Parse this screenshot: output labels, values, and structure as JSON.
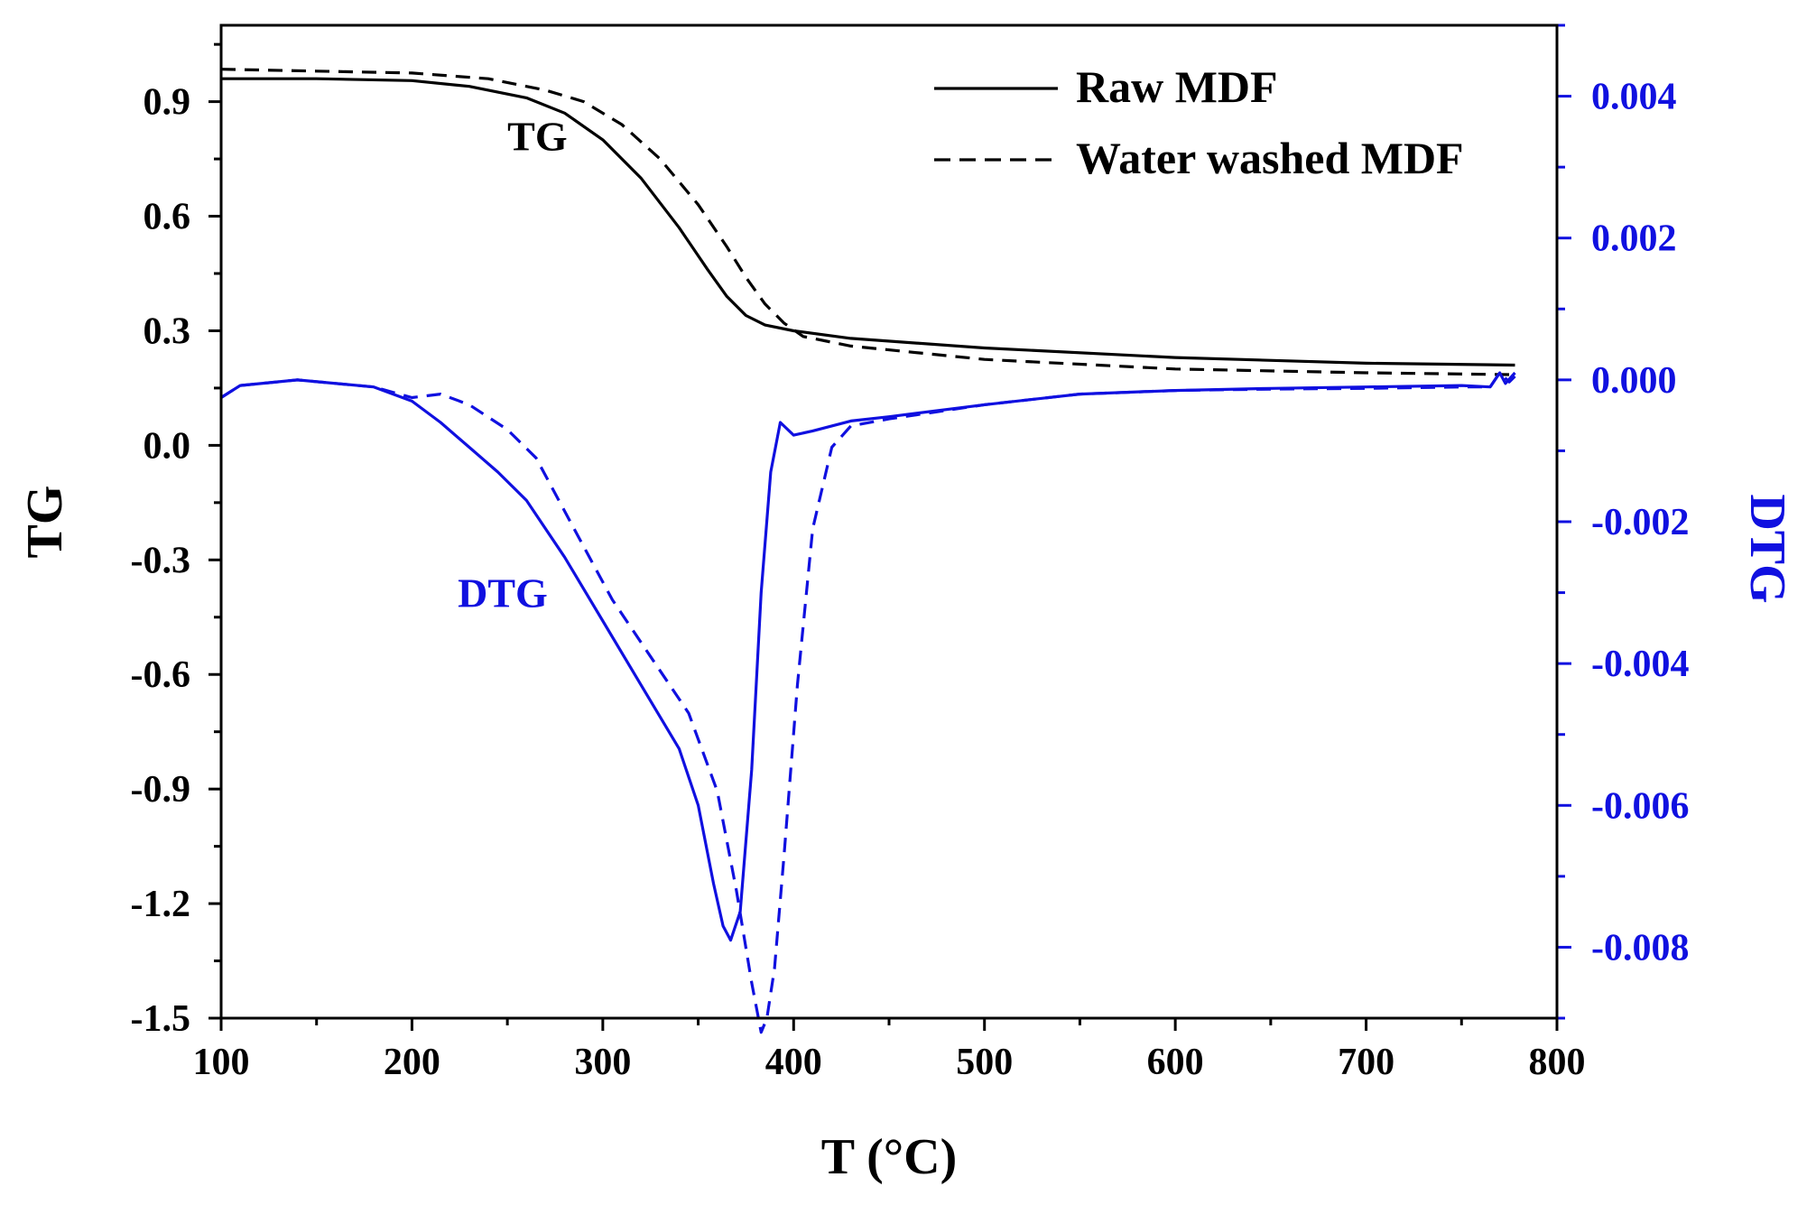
{
  "chart_data": {
    "type": "line",
    "xlabel": "T (°C)",
    "ylabel_left": "TG",
    "ylabel_right": "DTG",
    "xlim": [
      100,
      800
    ],
    "ylim_left": [
      -1.5,
      1.1
    ],
    "ylim_right": [
      -0.009,
      0.005
    ],
    "x_ticks": [
      100,
      200,
      300,
      400,
      500,
      600,
      700,
      800
    ],
    "y_left_ticks": [
      -1.5,
      -1.2,
      -0.9,
      -0.6,
      -0.3,
      0.0,
      0.3,
      0.6,
      0.9
    ],
    "y_left_tick_labels": [
      "-1.5",
      "-1.2",
      "-0.9",
      "-0.6",
      "-0.3",
      "0.0",
      "0.3",
      "0.6",
      "0.9"
    ],
    "y_right_ticks": [
      -0.008,
      -0.006,
      -0.004,
      -0.002,
      0.0,
      0.002,
      0.004
    ],
    "y_right_tick_labels": [
      "-0.008",
      "-0.006",
      "-0.004",
      "-0.002",
      "0.000",
      "0.002",
      "0.004"
    ],
    "legend": {
      "position": "top-right",
      "entries": [
        {
          "label": "Raw MDF",
          "style": "solid"
        },
        {
          "label": "Water washed MDF",
          "style": "dashed"
        }
      ]
    },
    "annotations": [
      {
        "text": "TG",
        "x": 250,
        "y": 0.81,
        "axis": "left",
        "color": "#000000"
      },
      {
        "text": "DTG",
        "x": 224,
        "y": -0.003,
        "axis": "right",
        "color": "#1010e0"
      }
    ],
    "colors": {
      "tg": "#000000",
      "dtg": "#1010e0",
      "right_axis": "#1010e0"
    },
    "series": [
      {
        "name": "Raw MDF",
        "kind": "TG",
        "axis": "left",
        "style": "solid",
        "color": "#000000",
        "x": [
          100,
          150,
          200,
          230,
          260,
          280,
          300,
          320,
          340,
          355,
          365,
          375,
          385,
          400,
          430,
          500,
          600,
          700,
          778
        ],
        "y": [
          0.96,
          0.96,
          0.955,
          0.94,
          0.91,
          0.87,
          0.8,
          0.7,
          0.57,
          0.46,
          0.39,
          0.34,
          0.315,
          0.3,
          0.28,
          0.255,
          0.23,
          0.215,
          0.21
        ]
      },
      {
        "name": "Water washed MDF",
        "kind": "TG",
        "axis": "left",
        "style": "dashed",
        "color": "#000000",
        "x": [
          100,
          150,
          200,
          240,
          270,
          290,
          310,
          330,
          350,
          365,
          375,
          385,
          395,
          405,
          430,
          500,
          600,
          700,
          778
        ],
        "y": [
          0.985,
          0.98,
          0.975,
          0.96,
          0.93,
          0.9,
          0.84,
          0.75,
          0.63,
          0.52,
          0.44,
          0.37,
          0.32,
          0.285,
          0.26,
          0.225,
          0.2,
          0.19,
          0.185
        ]
      },
      {
        "name": "Raw MDF",
        "kind": "DTG",
        "axis": "right",
        "style": "solid",
        "color": "#1010e0",
        "x": [
          100,
          110,
          140,
          180,
          200,
          215,
          230,
          245,
          260,
          280,
          300,
          320,
          340,
          350,
          358,
          363,
          367,
          372,
          378,
          383,
          388,
          393,
          400,
          410,
          430,
          450,
          500,
          550,
          600,
          650,
          700,
          750,
          765,
          770,
          773,
          778
        ],
        "y": [
          -0.00025,
          -8e-05,
          0.0,
          -0.0001,
          -0.0003,
          -0.0006,
          -0.00095,
          -0.0013,
          -0.0017,
          -0.0025,
          -0.0034,
          -0.0043,
          -0.0052,
          -0.006,
          -0.0071,
          -0.0077,
          -0.0079,
          -0.0075,
          -0.0055,
          -0.003,
          -0.0013,
          -0.0006,
          -0.00078,
          -0.00072,
          -0.00058,
          -0.00052,
          -0.00035,
          -0.0002,
          -0.00015,
          -0.00012,
          -0.0001,
          -8e-05,
          -0.0001,
          0.0001,
          -5e-05,
          0.0001
        ]
      },
      {
        "name": "Water washed MDF",
        "kind": "DTG",
        "axis": "right",
        "style": "dashed",
        "color": "#1010e0",
        "x": [
          100,
          110,
          140,
          180,
          200,
          215,
          230,
          250,
          265,
          285,
          305,
          325,
          345,
          360,
          370,
          378,
          383,
          386,
          390,
          395,
          402,
          410,
          420,
          430,
          450,
          500,
          550,
          600,
          650,
          700,
          750,
          765,
          770,
          775,
          778
        ],
        "y": [
          -0.00025,
          -8e-05,
          0.0,
          -0.0001,
          -0.00025,
          -0.0002,
          -0.00035,
          -0.0007,
          -0.0011,
          -0.0021,
          -0.0031,
          -0.0039,
          -0.0047,
          -0.0058,
          -0.0072,
          -0.0085,
          -0.0092,
          -0.009,
          -0.0083,
          -0.0067,
          -0.0043,
          -0.0021,
          -0.00095,
          -0.00065,
          -0.00055,
          -0.00035,
          -0.0002,
          -0.00015,
          -0.00013,
          -0.00012,
          -0.0001,
          -0.0001,
          0.0001,
          -3e-05,
          5e-05
        ]
      }
    ]
  }
}
